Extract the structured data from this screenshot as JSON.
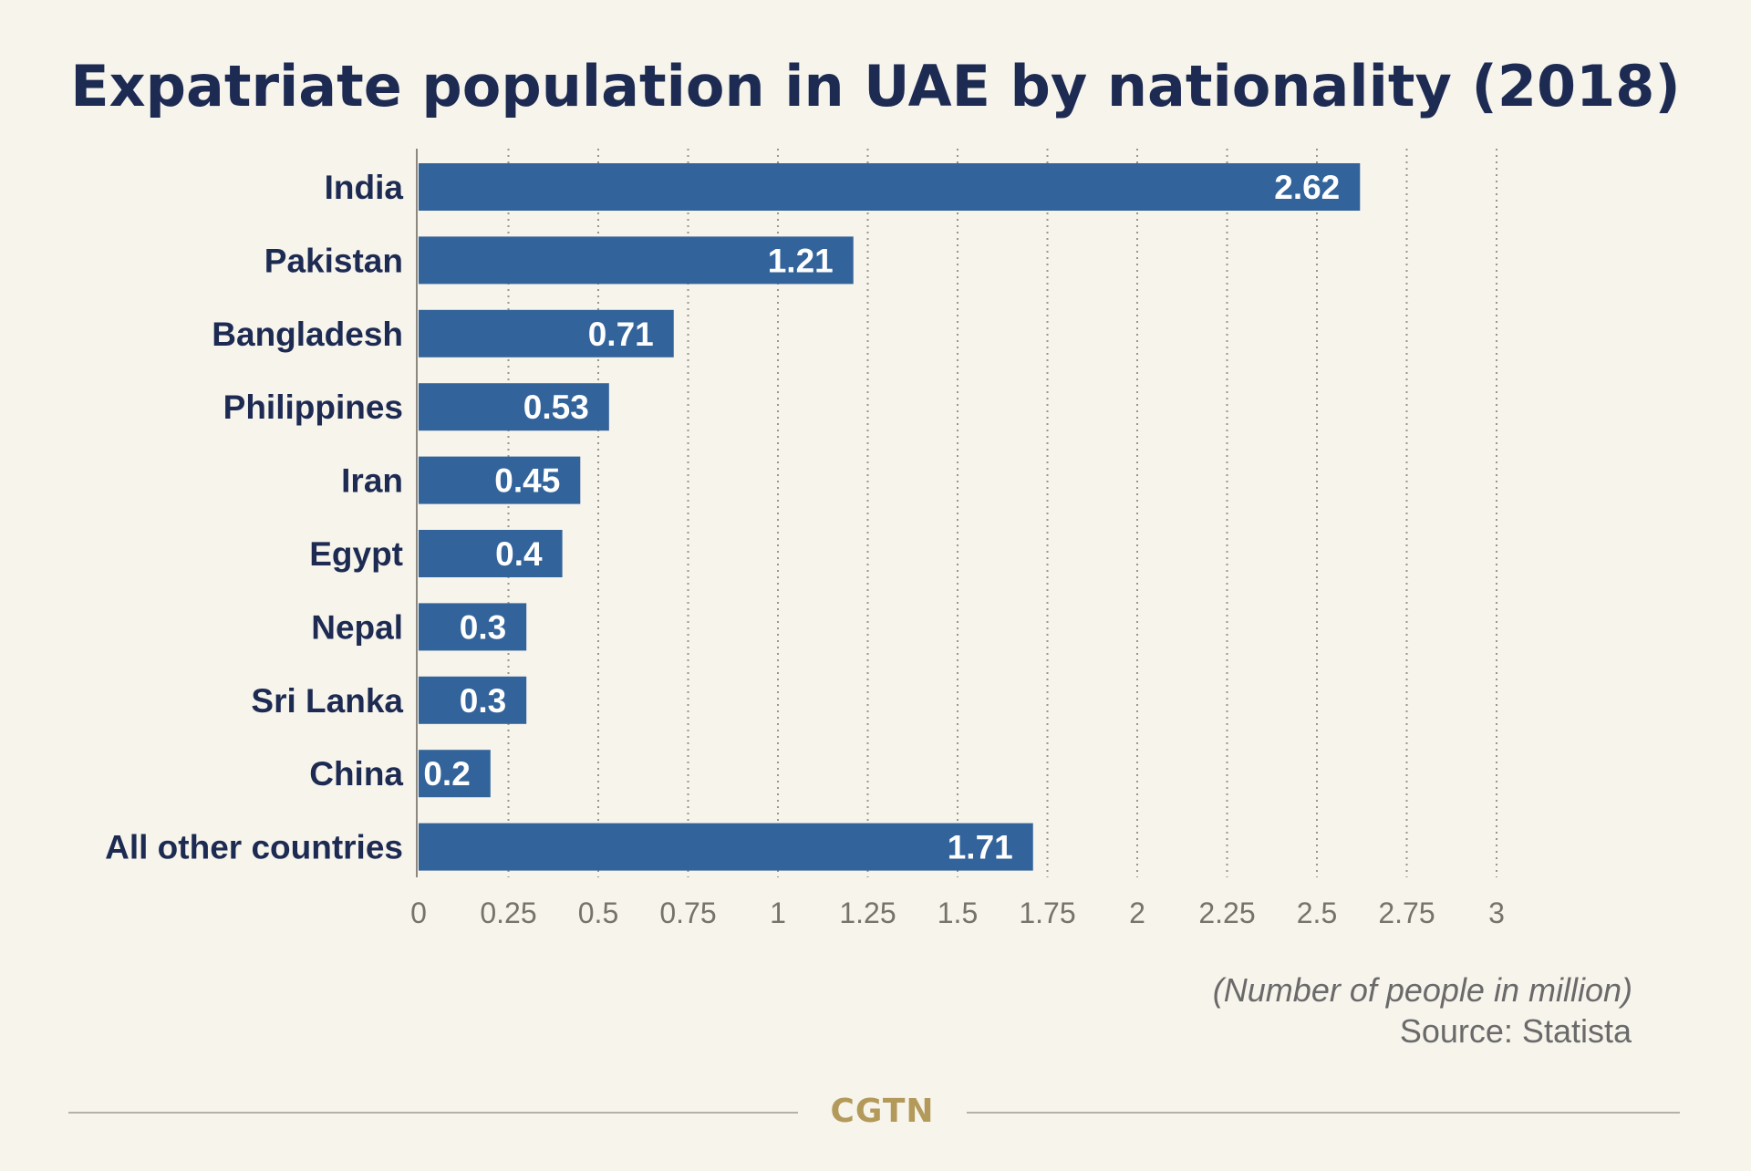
{
  "title": "Expatriate population in UAE by nationality (2018)",
  "unit_note": "(Number of people in million)",
  "source": "Source: Statista",
  "brand": "CGTN",
  "colors": {
    "background": "#f7f4ec",
    "bar": "#33639b",
    "title": "#1d2b53",
    "brand": "#b39a5b"
  },
  "chart_data": {
    "type": "bar",
    "orientation": "horizontal",
    "title": "Expatriate population in UAE by nationality (2018)",
    "categories": [
      "India",
      "Pakistan",
      "Bangladesh",
      "Philippines",
      "Iran",
      "Egypt",
      "Nepal",
      "Sri Lanka",
      "China",
      "All other countries"
    ],
    "values": [
      2.62,
      1.21,
      0.71,
      0.53,
      0.45,
      0.4,
      0.3,
      0.3,
      0.2,
      1.71
    ],
    "value_labels": [
      "2.62",
      "1.21",
      "0.71",
      "0.53",
      "0.45",
      "0.4",
      "0.3",
      "0.3",
      "0.2",
      "1.71"
    ],
    "xticks": [
      0,
      0.25,
      0.5,
      0.75,
      1,
      1.25,
      1.5,
      1.75,
      2,
      2.25,
      2.5,
      2.75,
      3
    ],
    "xtick_labels": [
      "0",
      "0.25",
      "0.5",
      "0.75",
      "1",
      "1.25",
      "1.5",
      "1.75",
      "2",
      "2.25",
      "2.5",
      "2.75",
      "3"
    ],
    "xlabel": "(Number of people in million)",
    "ylabel": "",
    "xlim": [
      0,
      3
    ],
    "grid": "vertical dotted"
  }
}
